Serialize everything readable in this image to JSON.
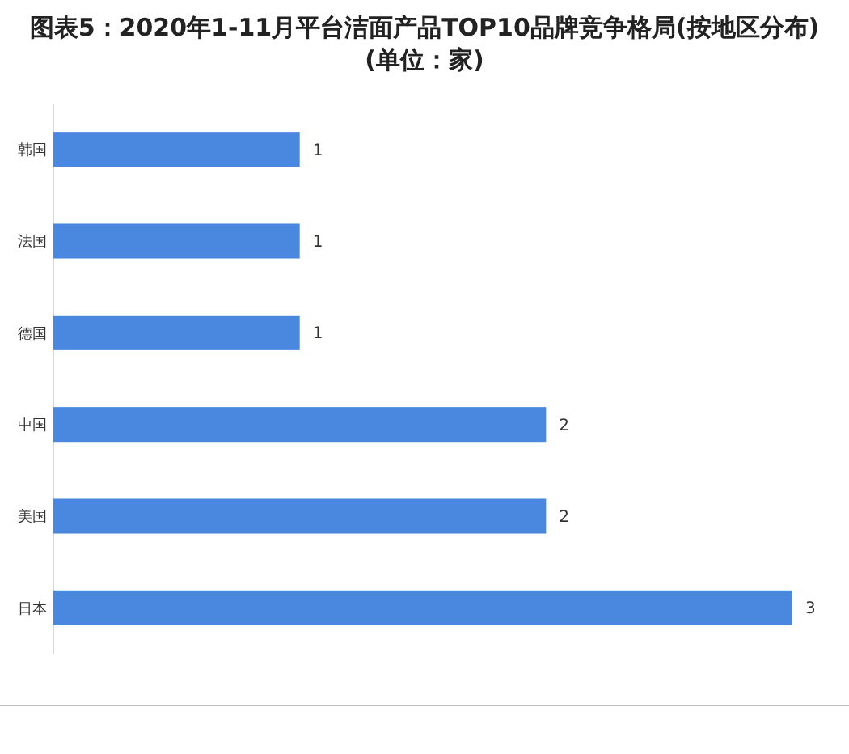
{
  "chart_data": {
    "type": "bar",
    "orientation": "horizontal",
    "title": "图表5：2020年1-11月平台洁面产品TOP10品牌竞争格局(按地区分布)(单位：家)",
    "categories": [
      "韩国",
      "法国",
      "德国",
      "中国",
      "美国",
      "日本"
    ],
    "values": [
      1,
      1,
      1,
      2,
      2,
      3
    ],
    "color": "#4a88e0",
    "data_labels": true
  }
}
